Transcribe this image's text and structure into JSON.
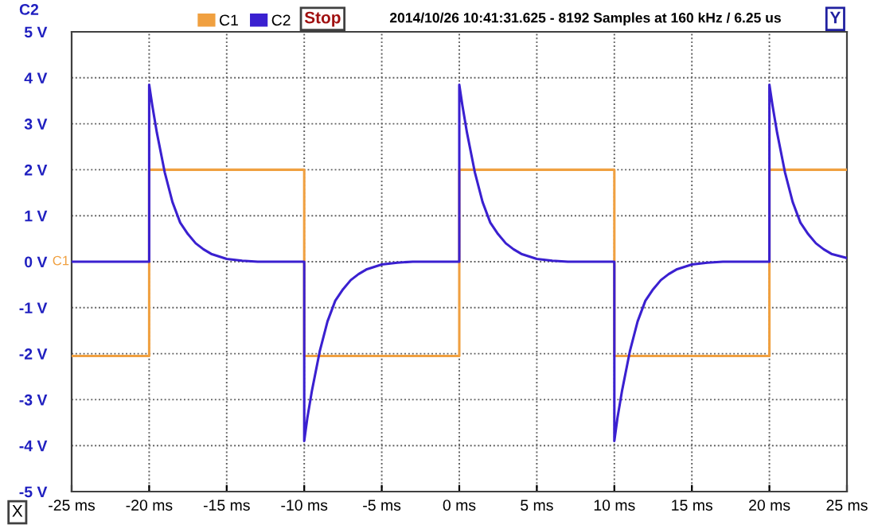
{
  "chart_data": {
    "type": "line",
    "ylabel": "C2",
    "annotations": [
      "Stop",
      "2014/10/26 10:41:31.625 - 8192 Samples at 160 kHz / 6.25 us",
      "Y",
      "X",
      "C1"
    ],
    "series": [
      {
        "name": "C1",
        "color": "#f0a040",
        "x": [
          -25,
          -20,
          -20,
          -10,
          -10,
          0,
          0,
          10,
          10,
          20,
          20,
          25
        ],
        "values": [
          -2.05,
          -2.05,
          2,
          2,
          -2.05,
          -2.05,
          2,
          2,
          -2.05,
          -2.05,
          2,
          2
        ]
      },
      {
        "name": "C2",
        "color": "#3a20d0",
        "x": [
          -25,
          -20,
          -20,
          -19.8,
          -19.5,
          -19,
          -18.5,
          -18,
          -17.5,
          -17,
          -16.5,
          -16,
          -15,
          -14,
          -13,
          -10,
          -10,
          -9.8,
          -9.5,
          -9,
          -8.5,
          -8,
          -7.5,
          -7,
          -6.5,
          -6,
          -5,
          -4,
          -3,
          0,
          0,
          0.2,
          0.5,
          1,
          1.5,
          2,
          2.5,
          3,
          3.5,
          4,
          5,
          6,
          7,
          10,
          10,
          10.2,
          10.5,
          11,
          11.5,
          12,
          12.5,
          13,
          13.5,
          14,
          15,
          16,
          17,
          20,
          20,
          20.2,
          20.5,
          21,
          21.5,
          22,
          22.5,
          23,
          23.5,
          24,
          25
        ],
        "values": [
          0,
          0,
          3.85,
          3.4,
          2.8,
          1.95,
          1.3,
          0.85,
          0.6,
          0.4,
          0.27,
          0.17,
          0.06,
          0.02,
          0,
          0,
          -3.9,
          -3.4,
          -2.8,
          -1.95,
          -1.3,
          -0.85,
          -0.6,
          -0.4,
          -0.27,
          -0.17,
          -0.06,
          -0.02,
          0,
          0,
          3.85,
          3.4,
          2.8,
          1.95,
          1.3,
          0.85,
          0.6,
          0.4,
          0.27,
          0.17,
          0.06,
          0.02,
          0,
          0,
          -3.9,
          -3.4,
          -2.8,
          -1.95,
          -1.3,
          -0.85,
          -0.6,
          -0.4,
          -0.27,
          -0.17,
          -0.06,
          -0.02,
          0,
          0,
          3.85,
          3.4,
          2.8,
          1.95,
          1.3,
          0.85,
          0.6,
          0.4,
          0.27,
          0.17,
          0.08
        ]
      }
    ],
    "xlim": [
      -25,
      25
    ],
    "ylim": [
      -5,
      5
    ],
    "xticks": [
      {
        "value": -25,
        "label": "-25 ms"
      },
      {
        "value": -20,
        "label": "-20 ms"
      },
      {
        "value": -15,
        "label": "-15 ms"
      },
      {
        "value": -10,
        "label": "-10 ms"
      },
      {
        "value": -5,
        "label": "-5 ms"
      },
      {
        "value": 0,
        "label": "0 ms"
      },
      {
        "value": 5,
        "label": "5 ms"
      },
      {
        "value": 10,
        "label": "10 ms"
      },
      {
        "value": 15,
        "label": "15 ms"
      },
      {
        "value": 20,
        "label": "20 ms"
      },
      {
        "value": 25,
        "label": "25 ms"
      }
    ],
    "yticks": [
      {
        "value": -5,
        "label": "-5 V"
      },
      {
        "value": -4,
        "label": "-4 V"
      },
      {
        "value": -3,
        "label": "-3 V"
      },
      {
        "value": -2,
        "label": "-2 V"
      },
      {
        "value": -1,
        "label": "-1 V"
      },
      {
        "value": 0,
        "label": "0 V"
      },
      {
        "value": 1,
        "label": "1 V"
      },
      {
        "value": 2,
        "label": "2 V"
      },
      {
        "value": 3,
        "label": "3 V"
      },
      {
        "value": 4,
        "label": "4 V"
      },
      {
        "value": 5,
        "label": "5 V"
      }
    ],
    "grid": true,
    "legend": "top left",
    "marker": "none",
    "line_style": "solid"
  }
}
